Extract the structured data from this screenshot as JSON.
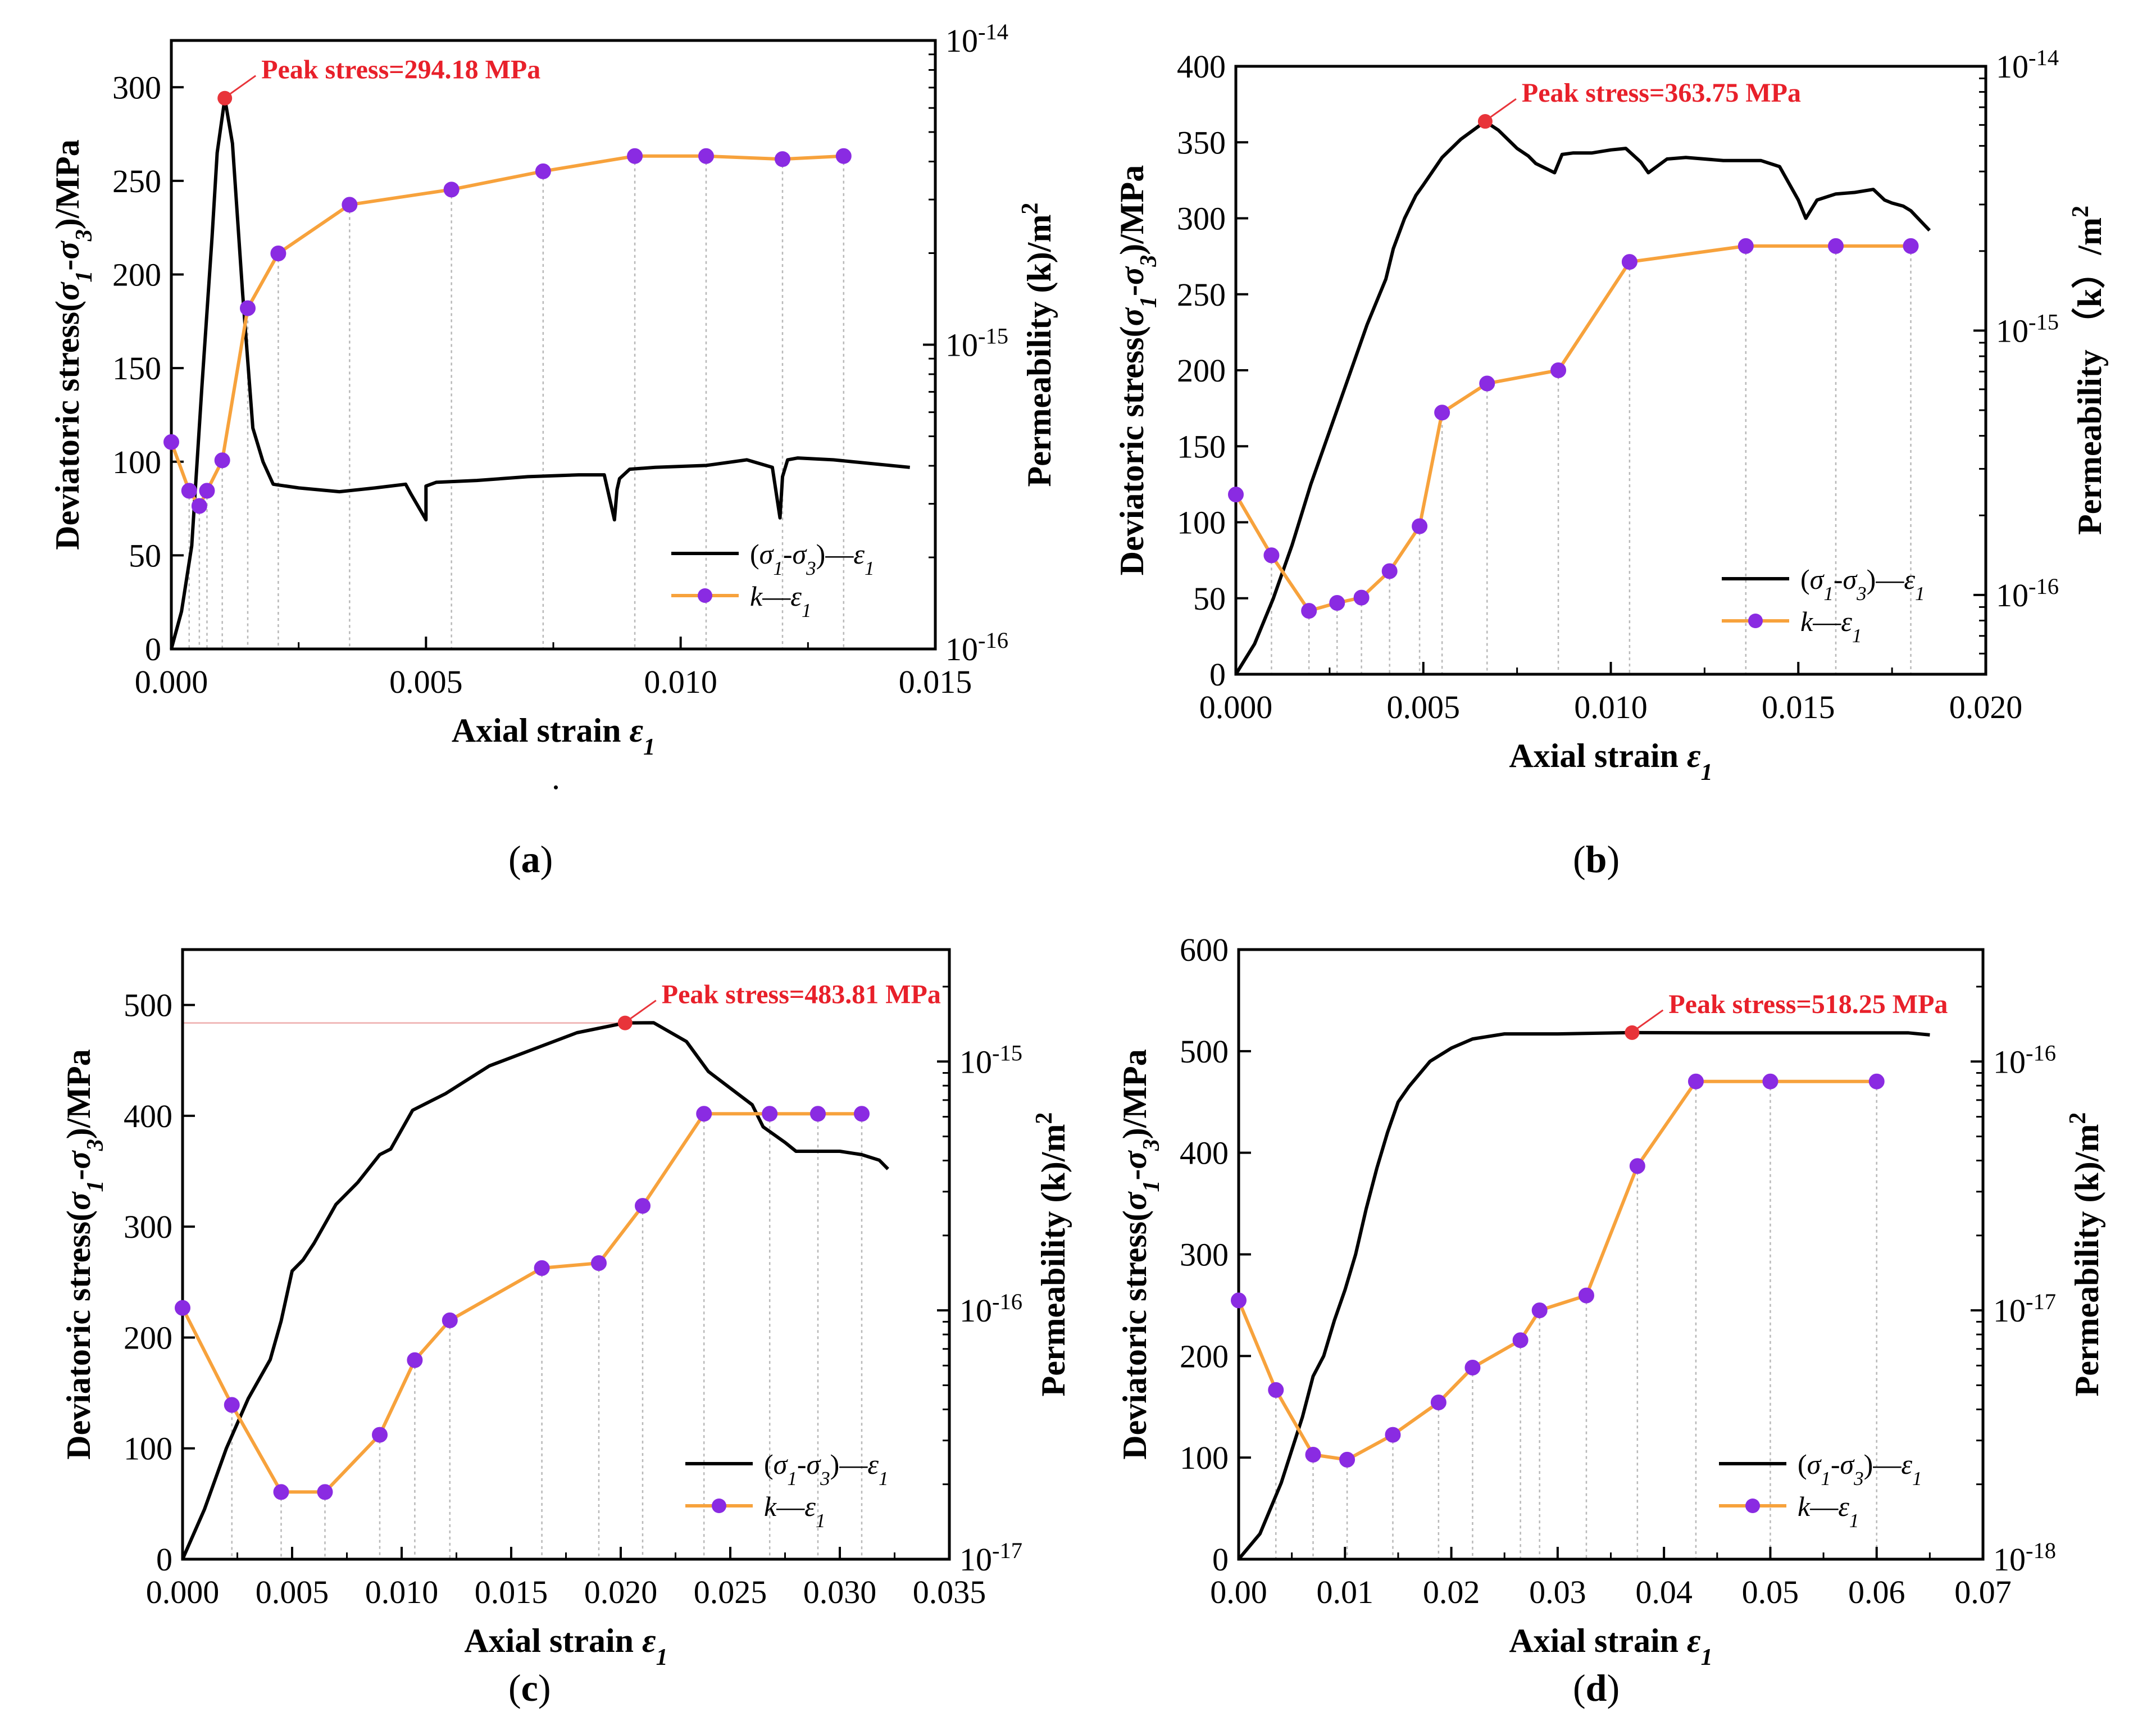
{
  "figure": {
    "panels": [
      {
        "label_open": "(",
        "label_letter": "a",
        "label_close": ")"
      },
      {
        "label_open": "(",
        "label_letter": "b",
        "label_close": ")"
      },
      {
        "label_open": "(",
        "label_letter": "c",
        "label_close": ")"
      },
      {
        "label_open": "(",
        "label_letter": "d",
        "label_close": ")"
      }
    ],
    "stray_dot": "."
  },
  "chart_data": [
    {
      "type": "line",
      "panel": "a",
      "xlabel": "Axial strain ε1",
      "ylabel_left": "Deviatoric stress(σ1-σ3)/MPa",
      "ylabel_right": "Permeability (k)/m2",
      "xlim": [
        0,
        0.015
      ],
      "xticks": [
        "0.000",
        "0.005",
        "0.010",
        "0.015"
      ],
      "ylim_left": [
        0,
        325
      ],
      "yticks_left": [
        "0",
        "50",
        "100",
        "150",
        "200",
        "250",
        "300"
      ],
      "ylim_right_log10": [
        -16,
        -14
      ],
      "yticks_right": [
        "10-16",
        "10-15",
        "10-14"
      ],
      "peak": {
        "x": 0.00105,
        "y": 294.18,
        "label": "Peak stress=294.18 MPa"
      },
      "legend_position": "bottom-right",
      "series": [
        {
          "name": "(σ1-σ3)—ε1",
          "axis": "left",
          "color": "#000000",
          "x": [
            0,
            0.0002,
            0.0004,
            0.0006,
            0.0008,
            0.0009,
            0.00105,
            0.0012,
            0.0014,
            0.0016,
            0.0018,
            0.002,
            0.0025,
            0.0033,
            0.004,
            0.0046,
            0.0047,
            0.005,
            0.005,
            0.0052,
            0.006,
            0.007,
            0.008,
            0.0085,
            0.0087,
            0.00875,
            0.0088,
            0.009,
            0.0095,
            0.0105,
            0.0113,
            0.0118,
            0.01195,
            0.012,
            0.0121,
            0.0123,
            0.013,
            0.0145
          ],
          "y": [
            0,
            20,
            55,
            140,
            220,
            265,
            294,
            270,
            190,
            118,
            100,
            88,
            86,
            84,
            86,
            88,
            83,
            69,
            87,
            89,
            90,
            92,
            93,
            93,
            69,
            85,
            91,
            96,
            97,
            98,
            101,
            97,
            70,
            92,
            101,
            102,
            101,
            97
          ]
        },
        {
          "name": "k—ε1",
          "axis": "right",
          "color": "#F7A23C",
          "marker_color": "#8A2BE2",
          "x": [
            0.0,
            0.00035,
            0.00055,
            0.0007,
            0.001,
            0.0015,
            0.0021,
            0.0035,
            0.0055,
            0.0073,
            0.0091,
            0.0105,
            0.012,
            0.0132
          ],
          "log10_y": [
            -15.32,
            -15.48,
            -15.53,
            -15.48,
            -15.38,
            -14.88,
            -14.7,
            -14.54,
            -14.49,
            -14.43,
            -14.38,
            -14.38,
            -14.39,
            -14.38
          ]
        }
      ]
    },
    {
      "type": "line",
      "panel": "b",
      "xlabel": "Axial strain ε1",
      "ylabel_left": "Deviatoric stress(σ1-σ3)/MPa",
      "ylabel_right": "Permeability （k）/m2",
      "xlim": [
        0,
        0.02
      ],
      "xticks": [
        "0.000",
        "0.005",
        "0.010",
        "0.015",
        "0.020"
      ],
      "ylim_left": [
        0,
        400
      ],
      "yticks_left": [
        "0",
        "50",
        "100",
        "150",
        "200",
        "250",
        "300",
        "350",
        "400"
      ],
      "ylim_right_log10": [
        -16.3,
        -14
      ],
      "yticks_right": [
        "10-16",
        "10-15",
        "10-14"
      ],
      "peak": {
        "x": 0.00665,
        "y": 363.75,
        "label": "Peak stress=363.75 MPa"
      },
      "legend_position": "bottom-right",
      "series": [
        {
          "name": "(σ1-σ3)—ε1",
          "axis": "left",
          "color": "#000000",
          "x": [
            0,
            0.0005,
            0.001,
            0.0015,
            0.002,
            0.0025,
            0.003,
            0.0035,
            0.004,
            0.0042,
            0.0045,
            0.0048,
            0.005,
            0.0055,
            0.006,
            0.00665,
            0.007,
            0.0075,
            0.0078,
            0.008,
            0.0085,
            0.0087,
            0.009,
            0.0095,
            0.01,
            0.0104,
            0.0108,
            0.011,
            0.0115,
            0.012,
            0.013,
            0.014,
            0.0145,
            0.015,
            0.0152,
            0.0155,
            0.016,
            0.0165,
            0.017,
            0.0173,
            0.0175,
            0.0178,
            0.018,
            0.0185
          ],
          "y": [
            0,
            20,
            50,
            85,
            125,
            160,
            195,
            230,
            260,
            280,
            300,
            315,
            322,
            340,
            352,
            363.75,
            358,
            346,
            341,
            336,
            330,
            342,
            343,
            343,
            345,
            346,
            337,
            330,
            339,
            340,
            338,
            338,
            334,
            312,
            300,
            312,
            316,
            317,
            319,
            312,
            310,
            308,
            305,
            292
          ]
        },
        {
          "name": "k—ε1",
          "axis": "right",
          "color": "#F7A23C",
          "marker_color": "#8A2BE2",
          "x": [
            0.0,
            0.00095,
            0.00195,
            0.0027,
            0.00335,
            0.0041,
            0.0049,
            0.0055,
            0.0067,
            0.0086,
            0.0105,
            0.0136,
            0.016,
            0.018
          ],
          "log10_y": [
            -15.62,
            -15.85,
            -16.06,
            -16.03,
            -16.01,
            -15.91,
            -15.74,
            -15.31,
            -15.2,
            -15.15,
            -14.74,
            -14.68,
            -14.68,
            -14.68
          ]
        }
      ]
    },
    {
      "type": "line",
      "panel": "c",
      "xlabel": "Axial strain ε1",
      "ylabel_left": "Deviatoric stress(σ1-σ3)/MPa",
      "ylabel_right": "Permeability (k)/m2",
      "xlim": [
        0,
        0.035
      ],
      "xticks": [
        "0.000",
        "0.005",
        "0.010",
        "0.015",
        "0.020",
        "0.025",
        "0.030",
        "0.035"
      ],
      "ylim_left": [
        0,
        550
      ],
      "yticks_left": [
        "0",
        "100",
        "200",
        "300",
        "400",
        "500"
      ],
      "ylim_right_log10": [
        -17,
        -14.55
      ],
      "yticks_right": [
        "10-17",
        "10-16",
        "10-15"
      ],
      "peak": {
        "x": 0.0202,
        "y": 483.81,
        "label": "Peak stress=483.81 MPa"
      },
      "legend_position": "bottom-right",
      "series": [
        {
          "name": "(σ1-σ3)—ε1",
          "axis": "left",
          "color": "#000000",
          "x": [
            0,
            0.001,
            0.002,
            0.003,
            0.004,
            0.0045,
            0.005,
            0.0055,
            0.006,
            0.007,
            0.008,
            0.009,
            0.0095,
            0.0105,
            0.012,
            0.014,
            0.016,
            0.018,
            0.0202,
            0.0215,
            0.023,
            0.024,
            0.026,
            0.0265,
            0.0275,
            0.028,
            0.03,
            0.031,
            0.0318,
            0.0322
          ],
          "y": [
            0,
            45,
            100,
            145,
            180,
            215,
            260,
            270,
            285,
            320,
            340,
            365,
            370,
            405,
            420,
            445,
            460,
            475,
            483.81,
            484,
            467,
            440,
            410,
            390,
            376,
            368,
            368,
            365,
            360,
            352
          ]
        },
        {
          "name": "k—ε1",
          "axis": "right",
          "color": "#F7A23C",
          "marker_color": "#8A2BE2",
          "x": [
            0.0,
            0.00225,
            0.0045,
            0.0065,
            0.009,
            0.0106,
            0.0122,
            0.0164,
            0.019,
            0.021,
            0.0238,
            0.0268,
            0.029,
            0.031
          ],
          "log10_y": [
            -15.99,
            -16.38,
            -16.73,
            -16.73,
            -16.5,
            -16.2,
            -16.04,
            -15.83,
            -15.81,
            -15.58,
            -15.21,
            -15.21,
            -15.21,
            -15.21
          ]
        }
      ]
    },
    {
      "type": "line",
      "panel": "d",
      "xlabel": "Axial strain ε1",
      "ylabel_left": "Deviatoric stress(σ1-σ3)/MPa",
      "ylabel_right": "Permeability (k)/m2",
      "xlim": [
        0,
        0.07
      ],
      "xticks": [
        "0.00",
        "0.01",
        "0.02",
        "0.03",
        "0.04",
        "0.05",
        "0.06",
        "0.07"
      ],
      "ylim_left": [
        0,
        600
      ],
      "yticks_left": [
        "0",
        "100",
        "200",
        "300",
        "400",
        "500",
        "600"
      ],
      "ylim_right_log10": [
        -18,
        -15.55
      ],
      "yticks_right": [
        "10-18",
        "10-17",
        "10-16"
      ],
      "peak": {
        "x": 0.037,
        "y": 518.25,
        "label": "Peak stress=518.25 MPa"
      },
      "legend_position": "bottom-right",
      "series": [
        {
          "name": "(σ1-σ3)—ε1",
          "axis": "left",
          "color": "#000000",
          "x": [
            0,
            0.002,
            0.004,
            0.006,
            0.007,
            0.008,
            0.009,
            0.01,
            0.011,
            0.012,
            0.013,
            0.014,
            0.015,
            0.016,
            0.018,
            0.02,
            0.022,
            0.025,
            0.03,
            0.037,
            0.045,
            0.055,
            0.063,
            0.065
          ],
          "y": [
            0,
            25,
            75,
            140,
            180,
            200,
            235,
            265,
            300,
            345,
            385,
            420,
            450,
            465,
            490,
            503,
            512,
            517,
            517,
            518.25,
            518,
            518,
            518,
            516
          ]
        },
        {
          "name": "k—ε1",
          "axis": "right",
          "color": "#F7A23C",
          "marker_color": "#8A2BE2",
          "x": [
            0.0,
            0.0035,
            0.007,
            0.0102,
            0.0145,
            0.0188,
            0.022,
            0.0265,
            0.0283,
            0.0327,
            0.0375,
            0.043,
            0.05,
            0.06
          ],
          "log10_y": [
            -16.96,
            -17.32,
            -17.58,
            -17.6,
            -17.5,
            -17.37,
            -17.23,
            -17.12,
            -17.0,
            -16.94,
            -16.42,
            -16.08,
            -16.08,
            -16.08
          ]
        }
      ]
    }
  ]
}
